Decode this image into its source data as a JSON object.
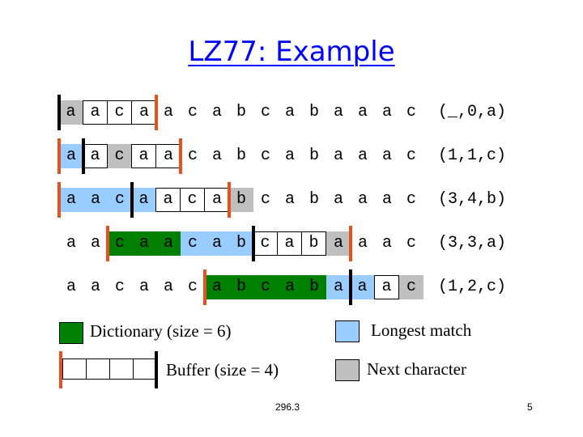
{
  "title": "LZ77: Example",
  "sequence": [
    "a",
    "a",
    "c",
    "a",
    "a",
    "c",
    "a",
    "b",
    "c",
    "a",
    "b",
    "a",
    "a",
    "a",
    "c"
  ],
  "colors": {
    "dictionary": "#008000",
    "longest_match": "#99ccff",
    "next_character": "#bfbfbf",
    "window_marker": "#e8501e",
    "buffer_marker": "#000000"
  },
  "steps": [
    {
      "output": "(_,0,a)",
      "dict_start": 0,
      "dict_end": 0,
      "buf_end": 4,
      "match": [],
      "next": 0
    },
    {
      "output": "(1,1,c)",
      "dict_start": 0,
      "dict_end": 1,
      "buf_end": 5,
      "match": [
        0
      ],
      "next": 2
    },
    {
      "output": "(3,4,b)",
      "dict_start": 0,
      "dict_end": 3,
      "buf_end": 7,
      "match": [
        0,
        1,
        2,
        3
      ],
      "next": 7
    },
    {
      "output": "(3,3,a)",
      "dict_start": 2,
      "dict_end": 8,
      "buf_end": 12,
      "match": [
        5,
        6,
        7
      ],
      "next": 11
    },
    {
      "output": "(1,2,c)",
      "dict_start": 6,
      "dict_end": 12,
      "buf_end": 15,
      "match": [
        11,
        12
      ],
      "next": 14
    }
  ],
  "legend": {
    "dictionary": "Dictionary (size = 6)",
    "longest_match": "Longest match",
    "buffer": "Buffer (size = 4)",
    "next_character": "Next character"
  },
  "footer": {
    "center": "296.3",
    "page_number": "5"
  }
}
